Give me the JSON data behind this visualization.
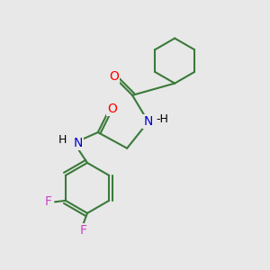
{
  "background_color": "#e8e8e8",
  "bond_color": "#3a7a3a",
  "bond_width": 1.5,
  "atom_colors": {
    "O": "#ff0000",
    "N": "#0000cc",
    "F": "#cc44cc",
    "C": "#000000",
    "H": "#000000"
  },
  "font_size_atoms": 10,
  "font_size_H": 9,
  "figsize": [
    3.0,
    3.0
  ],
  "dpi": 100
}
